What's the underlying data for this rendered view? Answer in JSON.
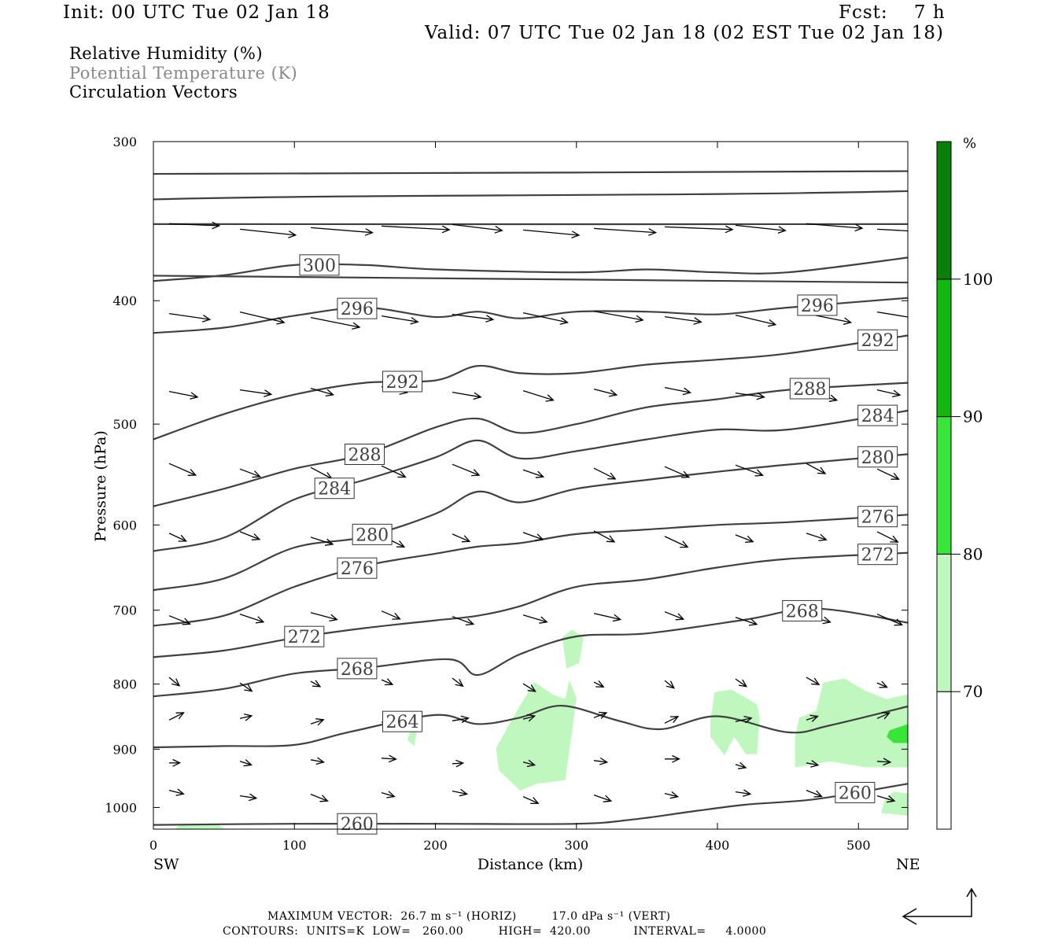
{
  "header": {
    "init": "Init: 00 UTC Tue 02 Jan 18",
    "fcst": "Fcst:    7 h",
    "valid": "Valid: 07 UTC Tue 02 Jan 18 (02 EST Tue 02 Jan 18)"
  },
  "fields": {
    "rh": "Relative Humidity (%)",
    "theta": "Potential Temperature (K)",
    "vectors": "Circulation Vectors"
  },
  "colors": {
    "theta_contour": "#404040",
    "rh_70": "#bff7bf",
    "rh_80": "#39e539",
    "rh_90": "#10b810",
    "rh_100": "#0a7f0a"
  },
  "chart_data": {
    "type": "contour",
    "xlabel": "Distance (km)",
    "ylabel": "Pressure (hPa)",
    "xlim": [
      0,
      535
    ],
    "ylim": [
      1040,
      300
    ],
    "yscale": "log",
    "x_ticks": [
      "0",
      "100",
      "200",
      "300",
      "400",
      "500"
    ],
    "y_ticks": [
      "300",
      "400",
      "500",
      "600",
      "700",
      "800",
      "900",
      "1000"
    ],
    "x_ends": {
      "left": "SW",
      "right": "NE"
    },
    "colorbar": {
      "unit": "%",
      "levels": [
        "70",
        "80",
        "90",
        "100"
      ],
      "colors": [
        "#bff7bf",
        "#39e539",
        "#10b810",
        "#0a7f0a"
      ]
    },
    "theta_contours": [
      {
        "label": "260",
        "points": [
          [
            0,
            1032
          ],
          [
            100,
            1030
          ],
          [
            200,
            1030
          ],
          [
            300,
            1030
          ],
          [
            340,
            1022
          ],
          [
            380,
            1008
          ],
          [
            420,
            995
          ],
          [
            470,
            985
          ],
          [
            535,
            958
          ]
        ]
      },
      {
        "label": "264",
        "points": [
          [
            0,
            897
          ],
          [
            50,
            895
          ],
          [
            100,
            893
          ],
          [
            140,
            872
          ],
          [
            200,
            846
          ],
          [
            230,
            860
          ],
          [
            260,
            850
          ],
          [
            290,
            832
          ],
          [
            330,
            855
          ],
          [
            360,
            868
          ],
          [
            400,
            848
          ],
          [
            450,
            873
          ],
          [
            480,
            862
          ],
          [
            535,
            833
          ]
        ]
      },
      {
        "label": "268",
        "points": [
          [
            0,
            818
          ],
          [
            50,
            807
          ],
          [
            100,
            785
          ],
          [
            150,
            777
          ],
          [
            210,
            765
          ],
          [
            230,
            787
          ],
          [
            260,
            758
          ],
          [
            300,
            734
          ],
          [
            350,
            730
          ],
          [
            420,
            712
          ],
          [
            470,
            698
          ],
          [
            535,
            716
          ]
        ]
      },
      {
        "label": "272",
        "points": [
          [
            0,
            762
          ],
          [
            50,
            753
          ],
          [
            100,
            736
          ],
          [
            150,
            723
          ],
          [
            200,
            713
          ],
          [
            230,
            707
          ],
          [
            260,
            695
          ],
          [
            300,
            671
          ],
          [
            350,
            662
          ],
          [
            400,
            648
          ],
          [
            450,
            638
          ],
          [
            535,
            631
          ]
        ]
      },
      {
        "label": "276",
        "points": [
          [
            0,
            720
          ],
          [
            50,
            707
          ],
          [
            100,
            671
          ],
          [
            150,
            646
          ],
          [
            200,
            632
          ],
          [
            230,
            624
          ],
          [
            260,
            620
          ],
          [
            300,
            610
          ],
          [
            350,
            605
          ],
          [
            400,
            600
          ],
          [
            450,
            597
          ],
          [
            535,
            589
          ]
        ]
      },
      {
        "label": "280",
        "points": [
          [
            0,
            675
          ],
          [
            50,
            661
          ],
          [
            100,
            625
          ],
          [
            150,
            613
          ],
          [
            200,
            588
          ],
          [
            230,
            565
          ],
          [
            260,
            576
          ],
          [
            300,
            562
          ],
          [
            350,
            553
          ],
          [
            400,
            545
          ],
          [
            450,
            538
          ],
          [
            535,
            528
          ]
        ]
      },
      {
        "label": "284",
        "points": [
          [
            0,
            629
          ],
          [
            50,
            614
          ],
          [
            100,
            573
          ],
          [
            150,
            553
          ],
          [
            200,
            531
          ],
          [
            230,
            515
          ],
          [
            260,
            532
          ],
          [
            300,
            525
          ],
          [
            350,
            514
          ],
          [
            400,
            505
          ],
          [
            450,
            505
          ],
          [
            535,
            488
          ]
        ]
      },
      {
        "label": "288",
        "points": [
          [
            0,
            580
          ],
          [
            50,
            562
          ],
          [
            100,
            542
          ],
          [
            150,
            528
          ],
          [
            200,
            503
          ],
          [
            230,
            495
          ],
          [
            260,
            508
          ],
          [
            300,
            500
          ],
          [
            350,
            485
          ],
          [
            400,
            478
          ],
          [
            450,
            470
          ],
          [
            535,
            464
          ]
        ]
      },
      {
        "label": "292",
        "points": [
          [
            0,
            514
          ],
          [
            50,
            491
          ],
          [
            100,
            474
          ],
          [
            150,
            464
          ],
          [
            200,
            462
          ],
          [
            230,
            450
          ],
          [
            260,
            456
          ],
          [
            300,
            456
          ],
          [
            350,
            449
          ],
          [
            400,
            445
          ],
          [
            450,
            440
          ],
          [
            535,
            426
          ]
        ]
      },
      {
        "label": "296",
        "points": [
          [
            0,
            424
          ],
          [
            50,
            420
          ],
          [
            100,
            411
          ],
          [
            150,
            405
          ],
          [
            200,
            412
          ],
          [
            230,
            408
          ],
          [
            260,
            413
          ],
          [
            300,
            408
          ],
          [
            350,
            408
          ],
          [
            400,
            410
          ],
          [
            450,
            405
          ],
          [
            535,
            398
          ]
        ]
      },
      {
        "label": "300",
        "points": [
          [
            0,
            386
          ],
          [
            50,
            382
          ],
          [
            100,
            375
          ],
          [
            150,
            375
          ],
          [
            200,
            378
          ],
          [
            300,
            380
          ],
          [
            350,
            378
          ],
          [
            400,
            380
          ],
          [
            450,
            380
          ],
          [
            535,
            370
          ]
        ]
      }
    ],
    "rh_regions": [
      {
        "level": "70",
        "points": [
          [
            15,
            1040
          ],
          [
            30,
            1040
          ],
          [
            50,
            1039
          ],
          [
            45,
            1030
          ],
          [
            20,
            1030
          ],
          [
            15,
            1040
          ]
        ]
      },
      {
        "level": "70",
        "points": [
          [
            180,
            885
          ],
          [
            186,
            848
          ],
          [
            188,
            855
          ],
          [
            185,
            895
          ],
          [
            180,
            885
          ]
        ]
      },
      {
        "level": "70",
        "points": [
          [
            243,
            898
          ],
          [
            255,
            850
          ],
          [
            270,
            797
          ],
          [
            283,
            815
          ],
          [
            292,
            822
          ],
          [
            295,
            794
          ],
          [
            300,
            821
          ],
          [
            297,
            870
          ],
          [
            292,
            952
          ],
          [
            272,
            958
          ],
          [
            260,
            970
          ],
          [
            245,
            935
          ],
          [
            243,
            898
          ]
        ]
      },
      {
        "level": "70",
        "points": [
          [
            290,
            735
          ],
          [
            297,
            725
          ],
          [
            305,
            735
          ],
          [
            302,
            770
          ],
          [
            293,
            778
          ],
          [
            290,
            735
          ]
        ]
      },
      {
        "level": "70",
        "points": [
          [
            395,
            855
          ],
          [
            398,
            812
          ],
          [
            410,
            808
          ],
          [
            420,
            820
          ],
          [
            428,
            830
          ],
          [
            430,
            850
          ],
          [
            428,
            908
          ],
          [
            420,
            908
          ],
          [
            412,
            880
          ],
          [
            405,
            910
          ],
          [
            395,
            880
          ],
          [
            395,
            855
          ]
        ]
      },
      {
        "level": "70",
        "points": [
          [
            455,
            880
          ],
          [
            458,
            850
          ],
          [
            470,
            840
          ],
          [
            475,
            798
          ],
          [
            490,
            792
          ],
          [
            505,
            810
          ],
          [
            520,
            822
          ],
          [
            535,
            815
          ],
          [
            535,
            930
          ],
          [
            505,
            930
          ],
          [
            480,
            920
          ],
          [
            455,
            930
          ],
          [
            455,
            880
          ]
        ]
      },
      {
        "level": "70",
        "points": [
          [
            516,
            1010
          ],
          [
            519,
            985
          ],
          [
            525,
            972
          ],
          [
            535,
            975
          ],
          [
            535,
            1015
          ],
          [
            516,
            1010
          ]
        ]
      },
      {
        "level": "80",
        "points": [
          [
            522,
            870
          ],
          [
            535,
            860
          ],
          [
            535,
            890
          ],
          [
            525,
            890
          ],
          [
            520,
            880
          ],
          [
            522,
            870
          ]
        ]
      }
    ],
    "max_vector": "MAXIMUM VECTOR:  26.7 m s⁻¹ (HORIZ)         17.0 dPa s⁻¹ (VERT)",
    "contours_info": "CONTOURS:  UNITS=K  LOW=   260.00         HIGH=  420.00           INTERVAL=     4.0000"
  }
}
